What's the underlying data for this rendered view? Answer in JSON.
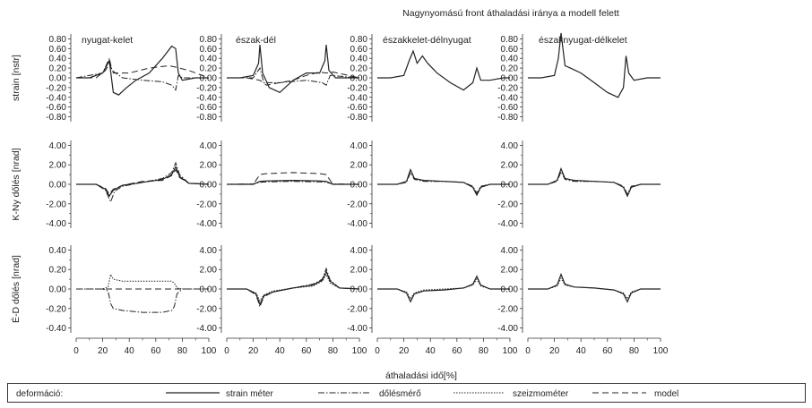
{
  "title": "Nagynyomású front áthaladási iránya a modell felett",
  "xlabel": "áthaladási idő[%]",
  "x_ticks": [
    "0",
    "20",
    "40",
    "60",
    "80",
    "100"
  ],
  "row_labels": [
    "strain [nstr]",
    "K-Ny dőlés [nrad]",
    "É-D dőlés [nrad]"
  ],
  "column_titles": [
    "nyugat-kelet",
    "észak-dél",
    "északkelet-délnyugat",
    "északnyugat-délkelet"
  ],
  "legend": {
    "label": "deformáció:",
    "items": [
      "strain méter",
      "dőlésmérő",
      "szeizmométer",
      "model"
    ]
  },
  "chart_data": [
    {
      "type": "line",
      "row": 0,
      "col": 0,
      "title": "nyugat-kelet",
      "ylabel": "strain [nstr]",
      "xlim": [
        0,
        100
      ],
      "ylim": [
        -0.9,
        0.9
      ],
      "y_ticks": [
        "0.80",
        "0.60",
        "0.40",
        "0.20",
        "0.00",
        "-0.20",
        "-0.40",
        "-0.60",
        "-0.80"
      ],
      "series": [
        {
          "name": "strain méter",
          "x": [
            0,
            10,
            20,
            25,
            28,
            32,
            38,
            45,
            55,
            65,
            72,
            75,
            77,
            80,
            90,
            100
          ],
          "y": [
            0,
            0,
            0.1,
            0.35,
            -0.3,
            -0.35,
            -0.2,
            -0.05,
            0.1,
            0.4,
            0.65,
            0.6,
            0.1,
            -0.05,
            0,
            0
          ]
        },
        {
          "name": "model",
          "x": [
            0,
            15,
            22,
            25,
            28,
            40,
            55,
            70,
            75,
            78,
            85,
            100
          ],
          "y": [
            0,
            0,
            0.15,
            0.3,
            0.1,
            0.1,
            0.2,
            0.25,
            0.22,
            0.2,
            0.15,
            0
          ]
        },
        {
          "name": "dőlésmérő",
          "x": [
            0,
            20,
            25,
            27,
            35,
            50,
            65,
            72,
            75,
            77,
            80,
            100
          ],
          "y": [
            0,
            0.1,
            0.4,
            0.15,
            0,
            -0.05,
            -0.08,
            -0.15,
            -0.25,
            0.05,
            0,
            0
          ]
        }
      ]
    },
    {
      "type": "line",
      "row": 0,
      "col": 1,
      "title": "észak-dél",
      "xlim": [
        0,
        100
      ],
      "ylim": [
        -0.9,
        0.9
      ],
      "y_ticks": [
        "0.80",
        "0.60",
        "0.40",
        "0.20",
        "0.00",
        "-0.20",
        "-0.40",
        "-0.60",
        "-0.80"
      ],
      "series": [
        {
          "name": "strain méter",
          "x": [
            0,
            10,
            20,
            24,
            25,
            27,
            32,
            40,
            50,
            60,
            70,
            74,
            75,
            77,
            82,
            90,
            100
          ],
          "y": [
            0,
            0,
            0.05,
            0.3,
            0.68,
            0.1,
            -0.2,
            -0.3,
            -0.05,
            0.1,
            0.1,
            0.35,
            0.68,
            0.15,
            0,
            0,
            0
          ]
        },
        {
          "name": "model",
          "x": [
            0,
            15,
            25,
            30,
            40,
            50,
            60,
            70,
            75,
            80,
            100
          ],
          "y": [
            0,
            0,
            -0.05,
            -0.15,
            -0.1,
            -0.05,
            0.05,
            0.12,
            0.1,
            0.12,
            0
          ]
        },
        {
          "name": "dőlésmérő",
          "x": [
            0,
            20,
            25,
            28,
            40,
            60,
            72,
            75,
            78,
            100
          ],
          "y": [
            0,
            0,
            0.2,
            -0.1,
            -0.1,
            -0.05,
            -0.1,
            -0.15,
            0.05,
            0
          ]
        }
      ]
    },
    {
      "type": "line",
      "row": 0,
      "col": 2,
      "title": "északkelet-délnyugat",
      "xlim": [
        0,
        100
      ],
      "ylim": [
        -0.9,
        0.9
      ],
      "y_ticks": [
        "0.80",
        "0.60",
        "0.40",
        "0.20",
        "0.00",
        "-0.20",
        "-0.40",
        "-0.60",
        "-0.80"
      ],
      "series": [
        {
          "name": "strain méter",
          "x": [
            0,
            10,
            20,
            24,
            27,
            30,
            34,
            38,
            45,
            55,
            65,
            72,
            75,
            78,
            85,
            95,
            100
          ],
          "y": [
            0,
            0,
            0.05,
            0.35,
            0.55,
            0.3,
            0.45,
            0.3,
            0.1,
            -0.1,
            -0.25,
            -0.1,
            0.2,
            -0.05,
            -0.05,
            0,
            0
          ]
        }
      ]
    },
    {
      "type": "line",
      "row": 0,
      "col": 3,
      "title": "északnyugat-délkelet",
      "xlim": [
        0,
        100
      ],
      "ylim": [
        -0.9,
        0.9
      ],
      "y_ticks": [
        "0.80",
        "0.60",
        "0.40",
        "0.20",
        "0.00",
        "-0.20",
        "-0.40",
        "-0.60",
        "-0.80"
      ],
      "series": [
        {
          "name": "strain méter",
          "x": [
            0,
            10,
            20,
            23,
            25,
            28,
            32,
            40,
            50,
            60,
            68,
            72,
            74,
            76,
            80,
            90,
            100
          ],
          "y": [
            0,
            0,
            0.05,
            0.4,
            0.92,
            0.25,
            0.2,
            0.1,
            -0.1,
            -0.3,
            -0.4,
            -0.2,
            0.45,
            0.1,
            -0.05,
            0,
            0
          ]
        }
      ]
    },
    {
      "type": "line",
      "row": 1,
      "col": 0,
      "ylabel": "K-Ny dőlés [nrad]",
      "xlim": [
        0,
        100
      ],
      "ylim": [
        -4.5,
        4.5
      ],
      "y_ticks": [
        "4.00",
        "2.00",
        "0.00",
        "-2.00",
        "-4.00"
      ],
      "series": [
        {
          "name": "strain méter",
          "x": [
            0,
            15,
            22,
            25,
            28,
            35,
            50,
            65,
            72,
            75,
            78,
            85,
            100
          ],
          "y": [
            0,
            0,
            -0.5,
            -1.2,
            -0.6,
            -0.1,
            0.2,
            0.5,
            1.0,
            1.8,
            0.8,
            0.1,
            0
          ]
        },
        {
          "name": "dőlésmérő",
          "x": [
            0,
            15,
            22,
            26,
            29,
            35,
            50,
            65,
            72,
            75,
            78,
            85,
            100
          ],
          "y": [
            0,
            0,
            -0.6,
            -1.8,
            -0.7,
            -0.2,
            0.2,
            0.6,
            1.2,
            2.2,
            1.0,
            0.1,
            0
          ]
        },
        {
          "name": "model",
          "x": [
            0,
            15,
            22,
            25,
            28,
            35,
            50,
            65,
            72,
            75,
            78,
            85,
            100
          ],
          "y": [
            0,
            0,
            -0.4,
            -1.0,
            -0.5,
            -0.1,
            0.3,
            0.4,
            0.9,
            1.5,
            0.7,
            0.1,
            0
          ]
        }
      ]
    },
    {
      "type": "line",
      "row": 1,
      "col": 1,
      "xlim": [
        0,
        100
      ],
      "ylim": [
        -4.5,
        4.5
      ],
      "y_ticks": [
        "4.00",
        "2.00",
        "0.00",
        "-2.00",
        "-4.00"
      ],
      "series": [
        {
          "name": "strain méter",
          "x": [
            0,
            20,
            25,
            30,
            50,
            70,
            75,
            80,
            100
          ],
          "y": [
            0,
            0,
            0.3,
            0.35,
            0.4,
            0.35,
            0.3,
            0,
            0
          ]
        },
        {
          "name": "model",
          "x": [
            0,
            20,
            25,
            30,
            50,
            70,
            75,
            80,
            100
          ],
          "y": [
            0,
            0,
            1.0,
            1.1,
            1.2,
            1.1,
            1.0,
            0,
            0
          ]
        },
        {
          "name": "dőlésmérő",
          "x": [
            0,
            20,
            25,
            30,
            50,
            70,
            75,
            80,
            100
          ],
          "y": [
            0,
            0.05,
            0.2,
            0.25,
            0.3,
            0.25,
            0.2,
            0.05,
            0
          ]
        }
      ]
    },
    {
      "type": "line",
      "row": 1,
      "col": 2,
      "xlim": [
        0,
        100
      ],
      "ylim": [
        -4.5,
        4.5
      ],
      "y_ticks": [
        "4.00",
        "2.00",
        "0.00",
        "-2.00",
        "-4.00"
      ],
      "series": [
        {
          "name": "strain méter",
          "x": [
            0,
            15,
            22,
            25,
            28,
            35,
            50,
            65,
            72,
            75,
            78,
            85,
            100
          ],
          "y": [
            0,
            0,
            0.3,
            1.5,
            0.6,
            0.4,
            0.3,
            0.2,
            -0.3,
            -1.1,
            -0.3,
            0,
            0
          ]
        },
        {
          "name": "dőlésmérő",
          "x": [
            0,
            15,
            22,
            25,
            28,
            35,
            50,
            65,
            72,
            75,
            78,
            85,
            100
          ],
          "y": [
            0,
            0,
            0.2,
            1.2,
            0.5,
            0.3,
            0.3,
            0.2,
            -0.2,
            -0.9,
            -0.2,
            0,
            0
          ]
        }
      ]
    },
    {
      "type": "line",
      "row": 1,
      "col": 3,
      "xlim": [
        0,
        100
      ],
      "ylim": [
        -4.5,
        4.5
      ],
      "y_ticks": [
        "4.00",
        "2.00",
        "0.00",
        "-2.00",
        "-4.00"
      ],
      "series": [
        {
          "name": "strain méter",
          "x": [
            0,
            15,
            22,
            25,
            28,
            35,
            50,
            65,
            72,
            75,
            78,
            85,
            100
          ],
          "y": [
            0,
            0,
            0.4,
            1.6,
            0.6,
            0.4,
            0.3,
            0.2,
            -0.3,
            -1.2,
            -0.3,
            0,
            0
          ]
        },
        {
          "name": "dőlésmérő",
          "x": [
            0,
            15,
            22,
            25,
            28,
            35,
            50,
            65,
            72,
            75,
            78,
            85,
            100
          ],
          "y": [
            0,
            0,
            0.3,
            1.3,
            0.5,
            0.3,
            0.3,
            0.2,
            -0.2,
            -1.0,
            -0.2,
            0,
            0
          ]
        }
      ]
    },
    {
      "type": "line",
      "row": 2,
      "col": 0,
      "ylabel": "É-D dőlés [nrad]",
      "xlim": [
        0,
        100
      ],
      "ylim": [
        -0.45,
        0.45
      ],
      "y_ticks": [
        "0.40",
        "0.20",
        "0.00",
        "-0.20",
        "-0.40"
      ],
      "series": [
        {
          "name": "szeizmométer",
          "x": [
            0,
            20,
            24,
            26,
            28,
            35,
            50,
            65,
            72,
            74,
            76,
            80,
            100
          ],
          "y": [
            0,
            0,
            0.02,
            0.15,
            0.1,
            0.08,
            0.08,
            0.08,
            0.08,
            0.06,
            0.01,
            0,
            0
          ]
        },
        {
          "name": "dőlésmérő",
          "x": [
            0,
            20,
            24,
            26,
            28,
            35,
            50,
            65,
            72,
            74,
            76,
            80,
            100
          ],
          "y": [
            0,
            0,
            -0.02,
            -0.15,
            -0.2,
            -0.22,
            -0.24,
            -0.24,
            -0.22,
            -0.18,
            -0.05,
            0,
            0
          ]
        },
        {
          "name": "model",
          "x": [
            0,
            100
          ],
          "y": [
            0,
            0
          ]
        }
      ]
    },
    {
      "type": "line",
      "row": 2,
      "col": 1,
      "xlim": [
        0,
        100
      ],
      "ylim": [
        -4.5,
        4.5
      ],
      "y_ticks": [
        "4.00",
        "2.00",
        "0.00",
        "-2.00",
        "-4.00"
      ],
      "series": [
        {
          "name": "strain méter",
          "x": [
            0,
            15,
            22,
            25,
            28,
            35,
            50,
            65,
            72,
            75,
            78,
            85,
            100
          ],
          "y": [
            0,
            0,
            -0.5,
            -1.6,
            -0.7,
            -0.3,
            0.1,
            0.4,
            0.9,
            1.8,
            0.8,
            0.1,
            0
          ]
        },
        {
          "name": "dőlésmérő",
          "x": [
            0,
            15,
            22,
            25,
            28,
            35,
            50,
            65,
            72,
            75,
            78,
            85,
            100
          ],
          "y": [
            0,
            0,
            -0.6,
            -1.8,
            -0.8,
            -0.3,
            0.1,
            0.5,
            1.0,
            2.1,
            0.9,
            0.1,
            0
          ]
        },
        {
          "name": "szeizmométer",
          "x": [
            0,
            15,
            22,
            25,
            28,
            35,
            50,
            65,
            72,
            75,
            78,
            85,
            100
          ],
          "y": [
            0,
            0,
            -0.4,
            -1.2,
            -0.6,
            -0.2,
            0.1,
            0.3,
            0.8,
            1.5,
            0.6,
            0.1,
            0
          ]
        }
      ]
    },
    {
      "type": "line",
      "row": 2,
      "col": 2,
      "xlim": [
        0,
        100
      ],
      "ylim": [
        -4.5,
        4.5
      ],
      "y_ticks": [
        "4.00",
        "2.00",
        "0.00",
        "-2.00",
        "-4.00"
      ],
      "series": [
        {
          "name": "strain méter",
          "x": [
            0,
            15,
            22,
            25,
            28,
            35,
            50,
            65,
            72,
            75,
            78,
            85,
            100
          ],
          "y": [
            0,
            0,
            -0.4,
            -1.3,
            -0.5,
            -0.2,
            -0.1,
            0.1,
            0.5,
            1.3,
            0.4,
            0,
            0
          ]
        },
        {
          "name": "szeizmométer",
          "x": [
            0,
            15,
            22,
            25,
            28,
            35,
            50,
            65,
            72,
            75,
            78,
            85,
            100
          ],
          "y": [
            0,
            0,
            -0.3,
            -1.0,
            -0.4,
            -0.1,
            0,
            0.1,
            0.4,
            1.0,
            0.3,
            0,
            0
          ]
        }
      ]
    },
    {
      "type": "line",
      "row": 2,
      "col": 3,
      "xlim": [
        0,
        100
      ],
      "ylim": [
        -4.5,
        4.5
      ],
      "y_ticks": [
        "4.00",
        "2.00",
        "0.00",
        "-2.00",
        "-4.00"
      ],
      "series": [
        {
          "name": "strain méter",
          "x": [
            0,
            15,
            22,
            25,
            28,
            35,
            50,
            65,
            72,
            75,
            78,
            85,
            100
          ],
          "y": [
            0,
            0,
            0.4,
            1.5,
            0.5,
            0.2,
            0.1,
            -0.1,
            -0.5,
            -1.3,
            -0.4,
            0,
            0
          ]
        },
        {
          "name": "szeizmométer",
          "x": [
            0,
            15,
            22,
            25,
            28,
            35,
            50,
            65,
            72,
            75,
            78,
            85,
            100
          ],
          "y": [
            0,
            0,
            0.3,
            1.1,
            0.4,
            0.2,
            0.1,
            -0.1,
            -0.4,
            -1.0,
            -0.3,
            0,
            0
          ]
        }
      ]
    }
  ]
}
